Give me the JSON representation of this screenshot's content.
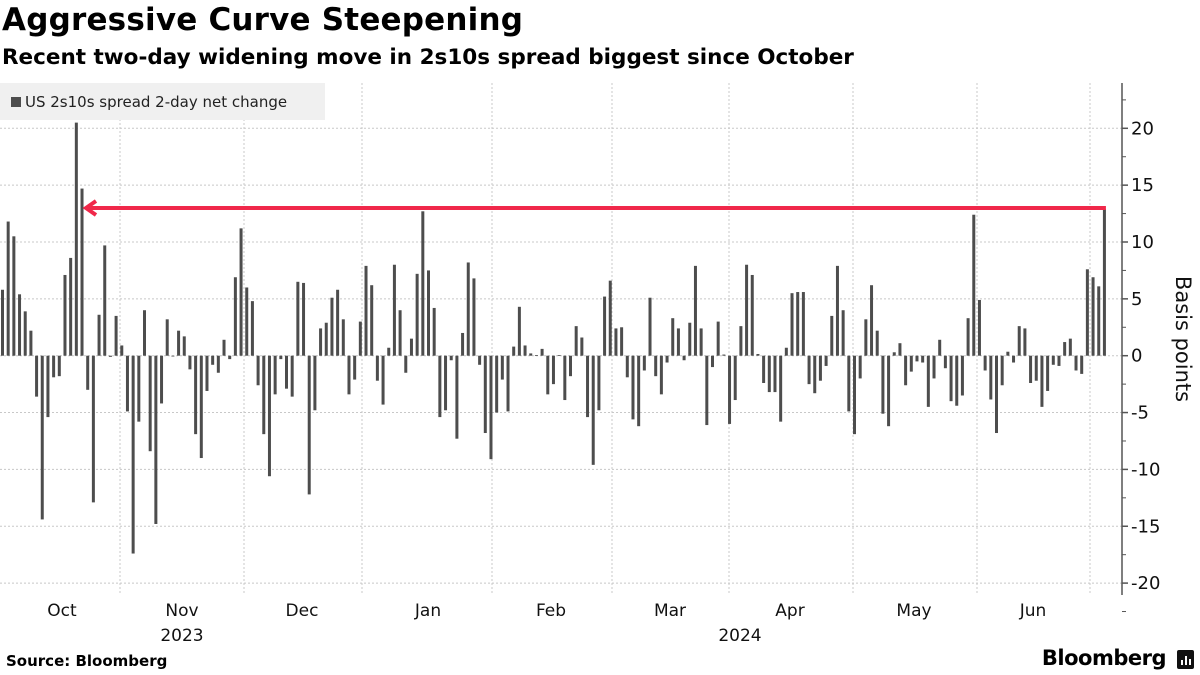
{
  "title": "Aggressive Curve Steepening",
  "subtitle": "Recent two-day widening move in 2s10s spread biggest since October",
  "source": "Source: Bloomberg",
  "brand": "Bloomberg",
  "colors": {
    "bar": "#4d4d4d",
    "annotation_arrow": "#f0284a",
    "legend_bg": "#f0f0f0",
    "grid": "#c8c8c8"
  },
  "chart_data": {
    "type": "bar",
    "title": "Aggressive Curve Steepening",
    "subtitle": "Recent two-day widening move in 2s10s spread biggest since October",
    "ylabel": "Basis points",
    "ylim": [
      -21,
      24
    ],
    "y_axis_side": "right",
    "y_ticks": [
      20,
      15,
      10,
      5,
      0,
      -5,
      -10,
      -15,
      -20
    ],
    "x_month_labels": [
      "Oct",
      "Nov",
      "Dec",
      "Jan",
      "Feb",
      "Mar",
      "Apr",
      "May",
      "Jun"
    ],
    "x_year_labels": [
      "2023",
      "2024"
    ],
    "grid": true,
    "legend": {
      "position": "top-left",
      "entries": [
        "US 2s10s spread 2-day net change"
      ]
    },
    "annotation": {
      "type": "arrow",
      "level": 12.9,
      "direction": "left",
      "from": "latest bar",
      "to": "October peak"
    },
    "series": [
      {
        "name": "US 2s10s spread 2-day net change",
        "values": [
          5.8,
          11.8,
          10.5,
          5.4,
          3.9,
          2.2,
          -3.6,
          -14.4,
          -5.4,
          -1.9,
          -1.8,
          7.1,
          8.6,
          20.5,
          14.7,
          -3.0,
          -12.9,
          3.6,
          9.7,
          -0.1,
          3.5,
          0.9,
          -4.9,
          -17.4,
          -5.8,
          4.0,
          -8.4,
          -14.8,
          -4.2,
          3.2,
          -0.05,
          2.2,
          1.7,
          -1.2,
          -6.9,
          -9.0,
          -3.1,
          -0.8,
          -1.5,
          1.4,
          -0.3,
          6.9,
          11.2,
          6.0,
          4.8,
          -2.6,
          -6.9,
          -10.6,
          -3.4,
          -0.3,
          -2.9,
          -3.6,
          6.5,
          6.4,
          -12.2,
          -4.8,
          2.4,
          2.9,
          5.1,
          5.8,
          3.2,
          -3.4,
          -2.1,
          3.0,
          7.9,
          6.2,
          -2.2,
          -4.3,
          0.7,
          8.0,
          4.0,
          -1.5,
          1.5,
          7.2,
          12.7,
          7.5,
          4.2,
          -5.4,
          -4.8,
          -0.4,
          -7.3,
          2.0,
          8.2,
          6.8,
          -0.8,
          -6.8,
          -9.1,
          -5.0,
          -2.1,
          -4.9,
          0.8,
          4.3,
          0.9,
          0.2,
          0.05,
          0.6,
          -3.4,
          -2.5,
          0.05,
          -3.9,
          -1.8,
          2.6,
          1.6,
          -5.4,
          -9.6,
          -4.8,
          5.2,
          6.6,
          2.4,
          2.5,
          -1.9,
          -5.6,
          -6.2,
          -1.3,
          5.1,
          -1.8,
          -3.4,
          -0.6,
          3.3,
          2.4,
          -0.4,
          2.9,
          7.9,
          2.4,
          -6.1,
          -1.0,
          3.0,
          0.1,
          -6.0,
          -3.9,
          2.6,
          8.0,
          7.1,
          0.15,
          -2.4,
          -3.2,
          -3.2,
          -5.8,
          0.7,
          5.5,
          5.6,
          5.6,
          -2.5,
          -3.3,
          -2.2,
          -0.9,
          3.5,
          7.9,
          4.0,
          -4.9,
          -6.9,
          -2.0,
          3.2,
          6.2,
          2.2,
          -5.1,
          -6.2,
          0.3,
          1.1,
          -2.6,
          -1.4,
          -0.5,
          -0.6,
          -4.5,
          -2.0,
          1.4,
          -1.1,
          -4.0,
          -4.4,
          -3.5,
          3.3,
          12.4,
          4.9,
          -1.3,
          -3.85,
          -6.8,
          -2.6,
          0.35,
          -0.6,
          2.6,
          2.4,
          -2.4,
          -2.2,
          -4.5,
          -3.1,
          -0.8,
          -0.9,
          1.2,
          1.5,
          -1.3,
          -1.6,
          7.6,
          6.9,
          6.1,
          12.9
        ]
      }
    ]
  }
}
